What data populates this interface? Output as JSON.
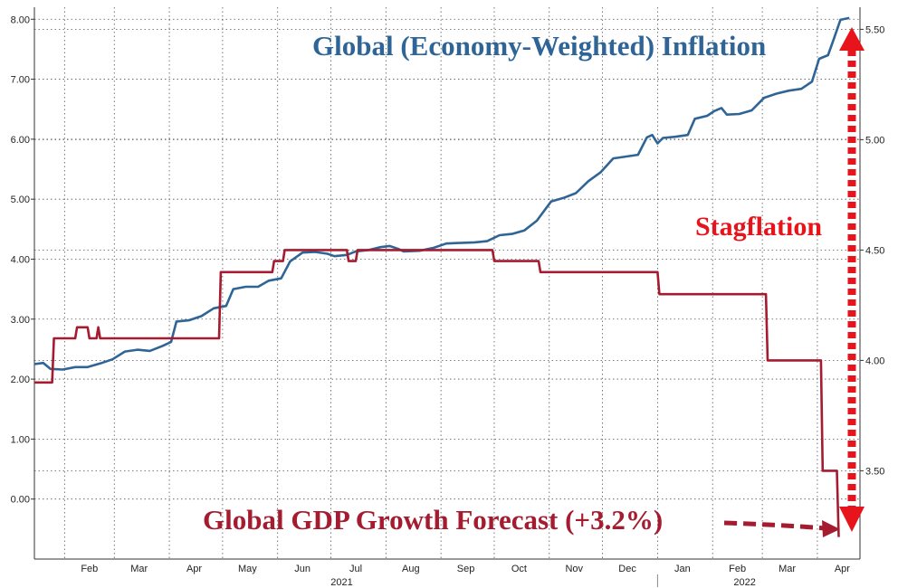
{
  "chart_data": {
    "type": "line",
    "title": "",
    "x_tick_labels": [
      "Feb",
      "Mar",
      "Apr",
      "May",
      "Jun",
      "Jul",
      "Aug",
      "Sep",
      "Oct",
      "Nov",
      "Dec",
      "Jan",
      "Feb",
      "Mar",
      "Apr"
    ],
    "year_labels": [
      "2021",
      "2022"
    ],
    "left_axis": {
      "ticks": [
        "0.00",
        "1.00",
        "2.00",
        "3.00",
        "4.00",
        "5.00",
        "6.00",
        "7.00",
        "8.00"
      ],
      "range": [
        -1.0,
        8.2
      ]
    },
    "right_axis": {
      "ticks": [
        "3.50",
        "4.00",
        "4.50",
        "5.00",
        "5.50"
      ],
      "range": [
        3.1,
        5.6
      ]
    },
    "grid": true,
    "series": [
      {
        "name": "Global (Economy-Weighted) Inflation",
        "axis": "left",
        "color": "#2f6596",
        "points": [
          [
            "2021-01-15",
            2.25
          ],
          [
            "2021-01-20",
            2.27
          ],
          [
            "2021-01-24",
            2.17
          ],
          [
            "2021-01-31",
            2.16
          ],
          [
            "2021-02-07",
            2.2
          ],
          [
            "2021-02-14",
            2.2
          ],
          [
            "2021-02-21",
            2.26
          ],
          [
            "2021-02-28",
            2.33
          ],
          [
            "2021-03-07",
            2.46
          ],
          [
            "2021-03-14",
            2.49
          ],
          [
            "2021-03-21",
            2.47
          ],
          [
            "2021-03-28",
            2.55
          ],
          [
            "2021-04-02",
            2.62
          ],
          [
            "2021-04-05",
            2.96
          ],
          [
            "2021-04-12",
            2.98
          ],
          [
            "2021-04-19",
            3.05
          ],
          [
            "2021-04-26",
            3.18
          ],
          [
            "2021-05-03",
            3.22
          ],
          [
            "2021-05-07",
            3.5
          ],
          [
            "2021-05-14",
            3.54
          ],
          [
            "2021-05-21",
            3.54
          ],
          [
            "2021-05-27",
            3.64
          ],
          [
            "2021-06-03",
            3.68
          ],
          [
            "2021-06-08",
            3.96
          ],
          [
            "2021-06-15",
            4.11
          ],
          [
            "2021-06-22",
            4.12
          ],
          [
            "2021-06-29",
            4.09
          ],
          [
            "2021-07-03",
            4.05
          ],
          [
            "2021-07-10",
            4.07
          ],
          [
            "2021-07-15",
            4.13
          ],
          [
            "2021-07-22",
            4.15
          ],
          [
            "2021-07-29",
            4.2
          ],
          [
            "2021-08-03",
            4.22
          ],
          [
            "2021-08-08",
            4.17
          ],
          [
            "2021-08-11",
            4.13
          ],
          [
            "2021-08-20",
            4.14
          ],
          [
            "2021-08-28",
            4.19
          ],
          [
            "2021-09-04",
            4.26
          ],
          [
            "2021-09-11",
            4.27
          ],
          [
            "2021-09-20",
            4.28
          ],
          [
            "2021-09-27",
            4.3
          ],
          [
            "2021-10-04",
            4.4
          ],
          [
            "2021-10-11",
            4.42
          ],
          [
            "2021-10-18",
            4.48
          ],
          [
            "2021-10-25",
            4.64
          ],
          [
            "2021-11-02",
            4.96
          ],
          [
            "2021-11-09",
            5.02
          ],
          [
            "2021-11-16",
            5.1
          ],
          [
            "2021-11-23",
            5.3
          ],
          [
            "2021-11-30",
            5.45
          ],
          [
            "2021-12-07",
            5.68
          ],
          [
            "2021-12-14",
            5.71
          ],
          [
            "2021-12-21",
            5.74
          ],
          [
            "2021-12-26",
            6.03
          ],
          [
            "2021-12-29",
            6.07
          ],
          [
            "2022-01-01",
            5.93
          ],
          [
            "2022-01-04",
            6.02
          ],
          [
            "2022-01-11",
            6.04
          ],
          [
            "2022-01-18",
            6.07
          ],
          [
            "2022-01-22",
            6.34
          ],
          [
            "2022-01-29",
            6.39
          ],
          [
            "2022-02-02",
            6.47
          ],
          [
            "2022-02-06",
            6.52
          ],
          [
            "2022-02-09",
            6.41
          ],
          [
            "2022-02-16",
            6.42
          ],
          [
            "2022-02-23",
            6.48
          ],
          [
            "2022-03-02",
            6.69
          ],
          [
            "2022-03-09",
            6.76
          ],
          [
            "2022-03-16",
            6.81
          ],
          [
            "2022-03-23",
            6.84
          ],
          [
            "2022-03-29",
            6.96
          ],
          [
            "2022-04-02",
            7.34
          ],
          [
            "2022-04-07",
            7.4
          ],
          [
            "2022-04-10",
            7.65
          ],
          [
            "2022-04-14",
            7.99
          ],
          [
            "2022-04-19",
            8.02
          ]
        ]
      },
      {
        "name": "Global GDP Growth Forecast (+3.2%)",
        "axis": "right",
        "color": "#a51c30",
        "points": [
          [
            "2021-01-15",
            3.9
          ],
          [
            "2021-01-25",
            3.9
          ],
          [
            "2021-01-26",
            4.1
          ],
          [
            "2021-02-07",
            4.1
          ],
          [
            "2021-02-08",
            4.15
          ],
          [
            "2021-02-14",
            4.15
          ],
          [
            "2021-02-15",
            4.1
          ],
          [
            "2021-02-19",
            4.1
          ],
          [
            "2021-02-20",
            4.15
          ],
          [
            "2021-02-21",
            4.1
          ],
          [
            "2021-04-29",
            4.1
          ],
          [
            "2021-04-30",
            4.4
          ],
          [
            "2021-05-29",
            4.4
          ],
          [
            "2021-05-30",
            4.45
          ],
          [
            "2021-06-04",
            4.45
          ],
          [
            "2021-06-05",
            4.5
          ],
          [
            "2021-07-10",
            4.5
          ],
          [
            "2021-07-11",
            4.45
          ],
          [
            "2021-07-15",
            4.45
          ],
          [
            "2021-07-16",
            4.5
          ],
          [
            "2021-09-30",
            4.5
          ],
          [
            "2021-10-01",
            4.45
          ],
          [
            "2021-10-26",
            4.45
          ],
          [
            "2021-10-27",
            4.4
          ],
          [
            "2022-01-01",
            4.4
          ],
          [
            "2022-01-02",
            4.3
          ],
          [
            "2022-03-03",
            4.3
          ],
          [
            "2022-03-04",
            4.0
          ],
          [
            "2022-04-03",
            4.0
          ],
          [
            "2022-04-04",
            3.5
          ],
          [
            "2022-04-12",
            3.5
          ],
          [
            "2022-04-13",
            3.2
          ]
        ]
      }
    ],
    "annotations": {
      "inflation_label": "Global (Economy-Weighted) Inflation",
      "gdp_label": "Global GDP Growth Forecast (+3.2%)",
      "stagflation_label": "Stagflation"
    },
    "colors": {
      "inflation": "#2f6596",
      "gdp": "#a51c30",
      "arrow": "#e8141c"
    }
  }
}
